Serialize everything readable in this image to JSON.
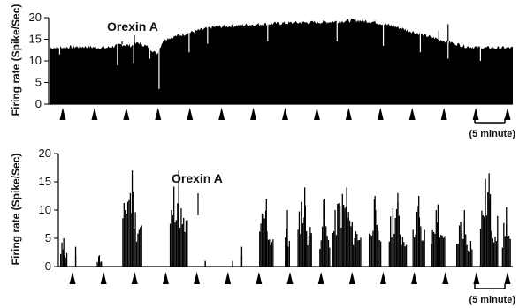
{
  "chart_data": [
    {
      "type": "bar",
      "panel": "top",
      "ylabel": "Firing rate (Spike/Sec)",
      "ylim": [
        0,
        20
      ],
      "yticks": [
        "0",
        "5",
        "10",
        "15",
        "20"
      ],
      "annotation": "Orexin A",
      "scale_bar_label": "(5 minute)",
      "arrowhead_count": 15,
      "envelope": [
        [
          0,
          13.0
        ],
        [
          0.07,
          13.3
        ],
        [
          0.12,
          13.0
        ],
        [
          0.155,
          13.8
        ],
        [
          0.175,
          13.5
        ],
        [
          0.19,
          14.2
        ],
        [
          0.215,
          13.0
        ],
        [
          0.23,
          11.5
        ],
        [
          0.245,
          15.0
        ],
        [
          0.3,
          16.5
        ],
        [
          0.35,
          17.8
        ],
        [
          0.42,
          18.3
        ],
        [
          0.5,
          18.7
        ],
        [
          0.6,
          19.0
        ],
        [
          0.66,
          19.4
        ],
        [
          0.7,
          19.0
        ],
        [
          0.75,
          17.8
        ],
        [
          0.8,
          16.2
        ],
        [
          0.84,
          15.0
        ],
        [
          0.9,
          13.3
        ],
        [
          0.95,
          13.0
        ],
        [
          1.0,
          13.0
        ]
      ],
      "dips": [
        [
          0.02,
          11.5
        ],
        [
          0.145,
          9.0
        ],
        [
          0.18,
          9.5
        ],
        [
          0.215,
          10.5
        ],
        [
          0.235,
          3.5
        ],
        [
          0.3,
          12.0
        ],
        [
          0.34,
          14.0
        ],
        [
          0.47,
          14.5
        ],
        [
          0.62,
          14.5
        ],
        [
          0.72,
          13.5
        ],
        [
          0.8,
          12.0
        ],
        [
          0.86,
          10.5
        ],
        [
          0.93,
          10.0
        ]
      ],
      "spikes": [
        [
          0.155,
          14.5
        ],
        [
          0.84,
          17.0
        ],
        [
          0.86,
          18.5
        ]
      ]
    },
    {
      "type": "bar",
      "panel": "bottom",
      "ylabel": "Firing rate (Spike/Sec)",
      "ylim": [
        0,
        20
      ],
      "yticks": [
        "0",
        "5",
        "10",
        "15",
        "20"
      ],
      "annotation": "Orexin A",
      "scale_bar_label": "(5 minute)",
      "arrowhead_count": 15,
      "bursts": [
        [
          0.0,
          0.02,
          5.0
        ],
        [
          0.04,
          0.045,
          3.5
        ],
        [
          0.1,
          0.115,
          2.0
        ],
        [
          0.17,
          0.225,
          17.0
        ],
        [
          0.3,
          0.35,
          17.0
        ],
        [
          0.395,
          0.4,
          1.0
        ],
        [
          0.47,
          0.475,
          1.0
        ],
        [
          0.495,
          0.5,
          3.5
        ],
        [
          0.545,
          0.585,
          12.0
        ],
        [
          0.615,
          0.63,
          10.0
        ],
        [
          0.65,
          0.69,
          14.0
        ],
        [
          0.71,
          0.74,
          12.0
        ],
        [
          0.745,
          0.825,
          14.0
        ],
        [
          0.845,
          0.88,
          12.5
        ],
        [
          0.9,
          0.95,
          13.0
        ],
        [
          0.965,
          1.0,
          12.5
        ],
        [
          1.015,
          1.055,
          11.0
        ],
        [
          1.085,
          1.13,
          10.0
        ],
        [
          1.15,
          1.2,
          16.5
        ],
        [
          1.21,
          1.235,
          10.5
        ]
      ]
    }
  ]
}
